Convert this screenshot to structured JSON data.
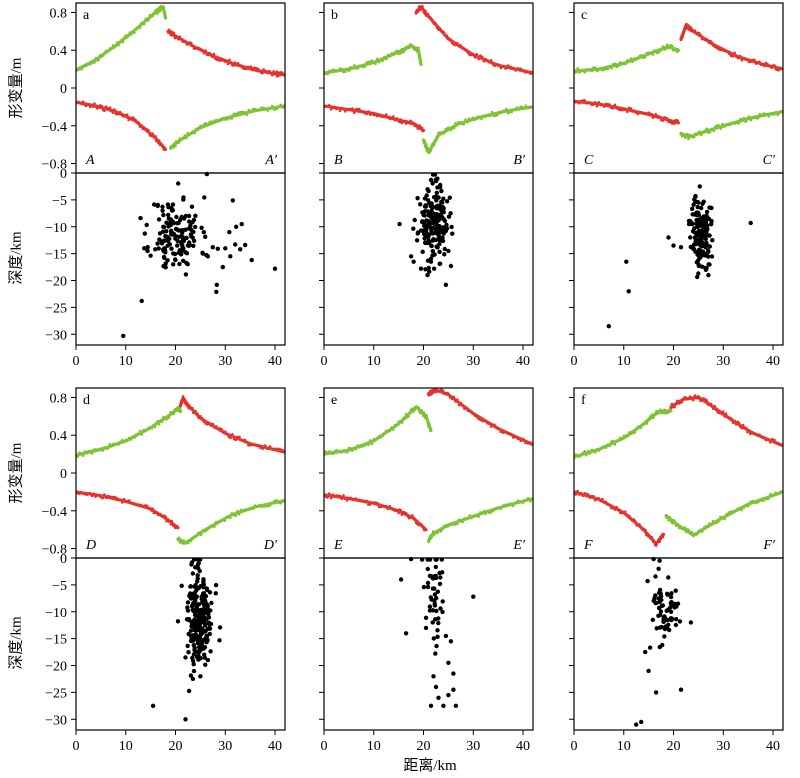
{
  "figure": {
    "ylabel_top": "形变量/m",
    "ylabel_bottom": "深度/km",
    "xlabel": "距离/km",
    "colors": {
      "red": "#e5312b",
      "green": "#7dc230",
      "points": "#000000"
    }
  },
  "chart_data": [
    {
      "id": "a",
      "letter": "a",
      "start_label": "A",
      "end_label": "A′",
      "displacement": {
        "type": "line",
        "xlim": [
          0,
          42
        ],
        "ylim": [
          -0.9,
          0.9
        ],
        "yticks": [
          -0.8,
          -0.4,
          0,
          0.4,
          0.8
        ],
        "yticklabels": [
          "−0.8",
          "−0.4",
          "0",
          "0.4",
          "0.8"
        ],
        "series": [
          {
            "color": "green",
            "x": [
              0,
              4,
              8,
              12,
              16,
              17.5,
              18
            ],
            "y": [
              0.19,
              0.3,
              0.45,
              0.62,
              0.8,
              0.86,
              0.74
            ]
          },
          {
            "color": "red",
            "x": [
              18.5,
              20,
              24,
              28,
              32,
              36,
              40,
              42
            ],
            "y": [
              0.6,
              0.55,
              0.43,
              0.33,
              0.25,
              0.19,
              0.15,
              0.14
            ]
          },
          {
            "color": "red",
            "x": [
              0,
              4,
              8,
              12,
              16,
              18
            ],
            "y": [
              -0.15,
              -0.19,
              -0.25,
              -0.35,
              -0.53,
              -0.65
            ]
          },
          {
            "color": "green",
            "x": [
              19,
              21,
              25,
              30,
              36,
              42
            ],
            "y": [
              -0.63,
              -0.55,
              -0.42,
              -0.32,
              -0.24,
              -0.19
            ]
          }
        ]
      },
      "depth": {
        "type": "scatter",
        "xlim": [
          0,
          42
        ],
        "ylim": [
          -32,
          0
        ],
        "xticks": [
          0,
          10,
          20,
          30,
          40
        ],
        "yticks": [
          -30,
          -25,
          -20,
          -15,
          -10,
          -5,
          0
        ],
        "yticklabels": [
          "−30",
          "−25",
          "−20",
          "−15",
          "−10",
          "−5",
          "0"
        ],
        "cluster": {
          "x_center": 20,
          "x_spread": 2.5,
          "y_center": -11.5,
          "y_spread": 3.5,
          "count": 150,
          "seed": 11
        },
        "points": [
          [
            9.5,
            -30.3
          ],
          [
            13.2,
            -23.8
          ],
          [
            26.3,
            -0.2
          ],
          [
            28.3,
            -20.8
          ],
          [
            28.2,
            -22.1
          ],
          [
            40,
            -17.8
          ],
          [
            35.3,
            -16.2
          ],
          [
            31.5,
            -5.1
          ],
          [
            26.5,
            -15.5
          ],
          [
            32,
            -13.3
          ],
          [
            33,
            -14.2
          ],
          [
            34,
            -13.4
          ],
          [
            30.8,
            -11
          ],
          [
            32.2,
            -10
          ],
          [
            29.5,
            -17.5
          ],
          [
            31,
            -15.5
          ],
          [
            27.5,
            -13.8
          ],
          [
            28.5,
            -14.1
          ],
          [
            33.3,
            -9.5
          ],
          [
            30,
            -14
          ]
        ]
      }
    },
    {
      "id": "b",
      "letter": "b",
      "start_label": "B",
      "end_label": "B′",
      "displacement": {
        "type": "line",
        "xlim": [
          0,
          42
        ],
        "ylim": [
          -0.9,
          0.9
        ],
        "series": [
          {
            "color": "green",
            "x": [
              0,
              5,
              10,
              15,
              17.5,
              19,
              19.5
            ],
            "y": [
              0.16,
              0.2,
              0.27,
              0.38,
              0.45,
              0.4,
              0.25
            ]
          },
          {
            "color": "red",
            "x": [
              18.5,
              19.5,
              21,
              25,
              30,
              35,
              42
            ],
            "y": [
              0.8,
              0.86,
              0.76,
              0.52,
              0.35,
              0.24,
              0.16
            ]
          },
          {
            "color": "red",
            "x": [
              0,
              5,
              10,
              15,
              18,
              20
            ],
            "y": [
              -0.19,
              -0.23,
              -0.27,
              -0.34,
              -0.38,
              -0.45
            ]
          },
          {
            "color": "green",
            "x": [
              20,
              21,
              23,
              27,
              32,
              37,
              42
            ],
            "y": [
              -0.55,
              -0.68,
              -0.5,
              -0.38,
              -0.3,
              -0.24,
              -0.2
            ]
          }
        ]
      },
      "depth": {
        "type": "scatter",
        "xlim": [
          0,
          42
        ],
        "ylim": [
          -32,
          0
        ],
        "cluster": {
          "x_center": 22,
          "x_spread": 1.5,
          "y_center": -9.5,
          "y_spread": 3.3,
          "count": 180,
          "seed": 23
        },
        "points": [
          [
            15.2,
            -9.5
          ],
          [
            18,
            -16.5
          ],
          [
            17.5,
            -15.5
          ],
          [
            19.5,
            -17.8
          ],
          [
            20.8,
            -19
          ],
          [
            21.5,
            -16.5
          ],
          [
            24.5,
            -20.8
          ],
          [
            25.5,
            -17.3
          ],
          [
            25,
            -14.5
          ],
          [
            22.5,
            -1.5
          ],
          [
            21.5,
            -1.3
          ],
          [
            22.3,
            -0.3
          ]
        ]
      }
    },
    {
      "id": "c",
      "letter": "c",
      "start_label": "C",
      "end_label": "C′",
      "displacement": {
        "type": "line",
        "xlim": [
          0,
          42
        ],
        "ylim": [
          -0.9,
          0.9
        ],
        "series": [
          {
            "color": "green",
            "x": [
              0,
              5,
              10,
              15,
              19,
              21
            ],
            "y": [
              0.18,
              0.2,
              0.26,
              0.36,
              0.44,
              0.4
            ]
          },
          {
            "color": "red",
            "x": [
              21.5,
              22.5,
              24,
              28,
              33,
              38,
              42
            ],
            "y": [
              0.52,
              0.66,
              0.6,
              0.46,
              0.33,
              0.25,
              0.2
            ]
          },
          {
            "color": "red",
            "x": [
              0,
              5,
              10,
              15,
              19,
              21
            ],
            "y": [
              -0.14,
              -0.17,
              -0.22,
              -0.28,
              -0.34,
              -0.37
            ]
          },
          {
            "color": "green",
            "x": [
              21.5,
              23,
              27,
              32,
              37,
              42
            ],
            "y": [
              -0.48,
              -0.52,
              -0.45,
              -0.37,
              -0.3,
              -0.25
            ]
          }
        ]
      },
      "depth": {
        "type": "scatter",
        "xlim": [
          0,
          42
        ],
        "ylim": [
          -32,
          0
        ],
        "cluster": {
          "x_center": 25.5,
          "x_spread": 1.0,
          "y_center": -11,
          "y_spread": 3.5,
          "count": 140,
          "seed": 37
        },
        "points": [
          [
            7,
            -28.5
          ],
          [
            11,
            -22
          ],
          [
            10.5,
            -16.5
          ],
          [
            19,
            -12
          ],
          [
            20,
            -13.5
          ],
          [
            21.5,
            -13.8
          ],
          [
            35.5,
            -9.3
          ],
          [
            27,
            -19
          ],
          [
            26.5,
            -18
          ]
        ]
      }
    },
    {
      "id": "d",
      "letter": "d",
      "start_label": "D",
      "end_label": "D′",
      "displacement": {
        "type": "line",
        "xlim": [
          0,
          42
        ],
        "ylim": [
          -0.9,
          0.9
        ],
        "series": [
          {
            "color": "green",
            "x": [
              0,
              5,
              10,
              15,
              19,
              20.5,
              21
            ],
            "y": [
              0.19,
              0.25,
              0.34,
              0.48,
              0.62,
              0.68,
              0.66
            ]
          },
          {
            "color": "red",
            "x": [
              21,
              21.5,
              22.5,
              25,
              30,
              35,
              42
            ],
            "y": [
              0.72,
              0.79,
              0.72,
              0.58,
              0.42,
              0.31,
              0.22
            ]
          },
          {
            "color": "red",
            "x": [
              0,
              5,
              10,
              15,
              18,
              20.5
            ],
            "y": [
              -0.2,
              -0.24,
              -0.3,
              -0.38,
              -0.48,
              -0.58
            ]
          },
          {
            "color": "green",
            "x": [
              20.5,
              22,
              26,
              31,
              36,
              42
            ],
            "y": [
              -0.7,
              -0.74,
              -0.6,
              -0.45,
              -0.36,
              -0.29
            ]
          }
        ]
      },
      "depth": {
        "type": "scatter",
        "xlim": [
          0,
          42
        ],
        "ylim": [
          -32,
          0
        ],
        "cluster": {
          "x_center": 24.8,
          "x_spread": 1.3,
          "y_center": -11.5,
          "y_spread": 4.2,
          "count": 230,
          "seed": 47
        },
        "points": [
          [
            15.5,
            -27.5
          ],
          [
            22,
            -30
          ],
          [
            23.5,
            -22.5
          ],
          [
            25,
            -22
          ],
          [
            26.5,
            -19
          ],
          [
            22,
            -18.5
          ],
          [
            23.2,
            -1.2
          ],
          [
            24.5,
            -0.3
          ]
        ]
      }
    },
    {
      "id": "e",
      "letter": "e",
      "start_label": "E",
      "end_label": "E′",
      "displacement": {
        "type": "line",
        "xlim": [
          0,
          42
        ],
        "ylim": [
          -0.9,
          0.9
        ],
        "series": [
          {
            "color": "green",
            "x": [
              0,
              5,
              10,
              15,
              18.5,
              20.5,
              21.5
            ],
            "y": [
              0.2,
              0.24,
              0.34,
              0.52,
              0.7,
              0.6,
              0.45
            ]
          },
          {
            "color": "red",
            "x": [
              21,
              22.5,
              25,
              30,
              35,
              42
            ],
            "y": [
              0.84,
              0.88,
              0.83,
              0.63,
              0.47,
              0.3
            ]
          },
          {
            "color": "red",
            "x": [
              0,
              5,
              10,
              15,
              18,
              20.5
            ],
            "y": [
              -0.23,
              -0.27,
              -0.32,
              -0.4,
              -0.48,
              -0.6
            ]
          },
          {
            "color": "green",
            "x": [
              21,
              22,
              25,
              30,
              35,
              42
            ],
            "y": [
              -0.72,
              -0.64,
              -0.55,
              -0.46,
              -0.37,
              -0.27
            ]
          }
        ]
      },
      "depth": {
        "type": "scatter",
        "xlim": [
          0,
          42
        ],
        "ylim": [
          -32,
          0
        ],
        "cluster": {
          "x_center": 22.3,
          "x_spread": 0.9,
          "y_center": -7.5,
          "y_spread": 4.0,
          "count": 50,
          "seed": 59
        },
        "points": [
          [
            17.5,
            -0.2
          ],
          [
            15.5,
            -4
          ],
          [
            16.5,
            -14
          ],
          [
            20.5,
            -13
          ],
          [
            24.5,
            -14.5
          ],
          [
            25.5,
            -15.5
          ],
          [
            22,
            -22
          ],
          [
            22.5,
            -24
          ],
          [
            21.5,
            -27.5
          ],
          [
            23,
            -26
          ],
          [
            25,
            -25.5
          ],
          [
            24,
            -27.5
          ],
          [
            26.5,
            -27.5
          ],
          [
            26,
            -24.5
          ],
          [
            25,
            -19.5
          ],
          [
            26,
            -21.5
          ],
          [
            30,
            -7.2
          ]
        ]
      }
    },
    {
      "id": "f",
      "letter": "f",
      "start_label": "F",
      "end_label": "F′",
      "displacement": {
        "type": "line",
        "xlim": [
          0,
          42
        ],
        "ylim": [
          -0.9,
          0.9
        ],
        "series": [
          {
            "color": "green",
            "x": [
              0,
              5,
              10,
              14,
              17,
              19.5
            ],
            "y": [
              0.17,
              0.25,
              0.37,
              0.52,
              0.65,
              0.66
            ]
          },
          {
            "color": "red",
            "x": [
              19.5,
              22,
              25,
              28,
              32,
              36,
              42
            ],
            "y": [
              0.7,
              0.78,
              0.8,
              0.7,
              0.55,
              0.42,
              0.29
            ]
          },
          {
            "color": "red",
            "x": [
              0,
              5,
              10,
              14,
              16.5,
              18
            ],
            "y": [
              -0.2,
              -0.28,
              -0.42,
              -0.6,
              -0.75,
              -0.65
            ]
          },
          {
            "color": "green",
            "x": [
              18.5,
              20,
              24,
              29,
              35,
              42
            ],
            "y": [
              -0.45,
              -0.52,
              -0.66,
              -0.5,
              -0.33,
              -0.2
            ]
          }
        ]
      },
      "depth": {
        "type": "scatter",
        "xlim": [
          0,
          42
        ],
        "ylim": [
          -32,
          0
        ],
        "cluster": {
          "x_center": 18.5,
          "x_spread": 1.5,
          "y_center": -10.5,
          "y_spread": 3.0,
          "count": 70,
          "seed": 71
        },
        "points": [
          [
            12.5,
            -31
          ],
          [
            13.5,
            -30.5
          ],
          [
            14.3,
            -17.5
          ],
          [
            15,
            -21
          ],
          [
            16.5,
            -25
          ],
          [
            21.5,
            -24.5
          ],
          [
            23.5,
            -12
          ],
          [
            16,
            -0.2
          ],
          [
            17.2,
            -0.5
          ],
          [
            17,
            -2
          ],
          [
            14.8,
            -4.3
          ]
        ]
      }
    }
  ]
}
